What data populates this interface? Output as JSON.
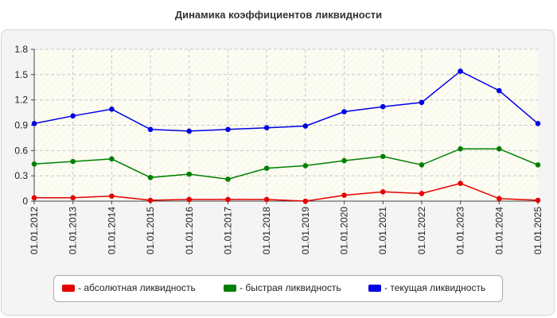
{
  "chart_data": {
    "type": "line",
    "title": "Динамика коэффициентов ликвидности",
    "categories": [
      "01.01.2012",
      "01.01.2013",
      "01.01.2014",
      "01.01.2015",
      "01.01.2016",
      "01.01.2017",
      "01.01.2018",
      "01.01.2019",
      "01.01.2020",
      "01.01.2021",
      "01.01.2022",
      "01.01.2023",
      "01.01.2024",
      "01.01.2025"
    ],
    "ylim": [
      0,
      1.8
    ],
    "yticks": [
      "0",
      "0.3",
      "0.6",
      "0.9",
      "1.2",
      "1.5",
      "1.8"
    ],
    "grid": true,
    "legend_position": "bottom",
    "series": [
      {
        "name": "- абсолютная ликвидность",
        "color": "#e60000",
        "values": [
          0.04,
          0.04,
          0.06,
          0.01,
          0.02,
          0.02,
          0.02,
          0.0,
          0.07,
          0.11,
          0.09,
          0.21,
          0.03,
          0.01
        ]
      },
      {
        "name": "- быстрая ликвидность",
        "color": "#008000",
        "values": [
          0.44,
          0.47,
          0.5,
          0.28,
          0.32,
          0.26,
          0.39,
          0.42,
          0.48,
          0.53,
          0.43,
          0.62,
          0.62,
          0.43
        ]
      },
      {
        "name": "- текущая ликвидность",
        "color": "#0000e6",
        "values": [
          0.92,
          1.01,
          1.09,
          0.85,
          0.83,
          0.85,
          0.87,
          0.89,
          1.06,
          1.12,
          1.17,
          1.54,
          1.31,
          0.92
        ]
      }
    ]
  }
}
